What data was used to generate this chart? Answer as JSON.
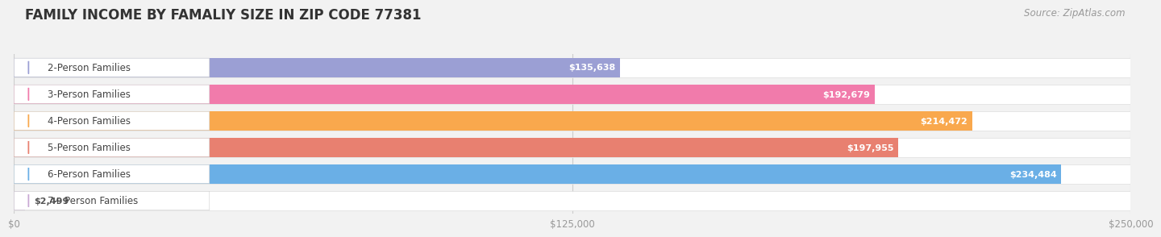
{
  "title": "FAMILY INCOME BY FAMALIY SIZE IN ZIP CODE 77381",
  "source": "Source: ZipAtlas.com",
  "categories": [
    "2-Person Families",
    "3-Person Families",
    "4-Person Families",
    "5-Person Families",
    "6-Person Families",
    "7+ Person Families"
  ],
  "values": [
    135638,
    192679,
    214472,
    197955,
    234484,
    2499
  ],
  "bar_colors": [
    "#9b9fd4",
    "#f17bab",
    "#f9a84d",
    "#e88070",
    "#6aafe6",
    "#c9a8d4"
  ],
  "value_labels": [
    "$135,638",
    "$192,679",
    "$214,472",
    "$197,955",
    "$234,484",
    "$2,499"
  ],
  "xlim": [
    0,
    250000
  ],
  "xticks": [
    0,
    125000,
    250000
  ],
  "xtick_labels": [
    "$0",
    "$125,000",
    "$250,000"
  ],
  "background_color": "#f2f2f2",
  "title_fontsize": 12,
  "label_fontsize": 8.5,
  "value_fontsize": 8,
  "source_fontsize": 8.5
}
